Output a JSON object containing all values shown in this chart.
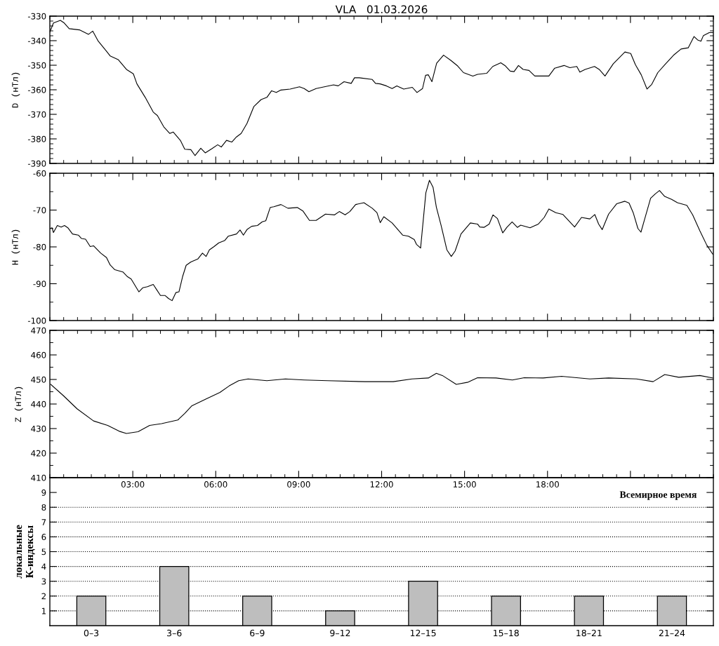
{
  "chart_data": [
    {
      "type": "line",
      "title": "VLA   01.03.2026",
      "ylabel": "D (нТл)",
      "color": "#000000",
      "xlim": [
        0,
        24
      ],
      "ylim": [
        -390,
        -330
      ],
      "xticks": [
        3,
        6,
        9,
        12,
        15,
        18,
        21
      ],
      "yticks": [
        -390,
        -380,
        -370,
        -360,
        -350,
        -340,
        -330
      ],
      "tick_labels": "y",
      "x": [
        0.0,
        0.13,
        0.38,
        0.52,
        0.7,
        1.07,
        1.4,
        1.55,
        1.75,
        2.05,
        2.18,
        2.47,
        2.77,
        3.02,
        3.15,
        3.45,
        3.74,
        3.89,
        4.12,
        4.34,
        4.46,
        4.72,
        4.88,
        5.1,
        5.25,
        5.46,
        5.62,
        5.86,
        6.07,
        6.2,
        6.39,
        6.58,
        6.75,
        6.92,
        7.13,
        7.38,
        7.64,
        7.85,
        8.02,
        8.19,
        8.36,
        8.69,
        9.03,
        9.2,
        9.37,
        9.63,
        10.05,
        10.26,
        10.43,
        10.64,
        10.9,
        11.02,
        11.19,
        11.66,
        11.78,
        11.95,
        12.17,
        12.38,
        12.55,
        12.8,
        13.11,
        13.28,
        13.48,
        13.59,
        13.69,
        13.82,
        13.99,
        14.24,
        14.5,
        14.75,
        14.96,
        15.3,
        15.47,
        15.8,
        16.02,
        16.31,
        16.48,
        16.65,
        16.79,
        16.95,
        17.12,
        17.33,
        17.54,
        18.05,
        18.26,
        18.6,
        18.81,
        19.06,
        19.17,
        19.36,
        19.7,
        19.87,
        20.08,
        20.38,
        20.8,
        21.01,
        21.18,
        21.39,
        21.6,
        21.77,
        21.99,
        22.24,
        22.58,
        22.83,
        23.09,
        23.3,
        23.43,
        23.55,
        23.64,
        23.85,
        23.98
      ],
      "values": [
        -336.5,
        -332.8,
        -331.7,
        -332.8,
        -335.1,
        -335.6,
        -337.4,
        -336.1,
        -340.2,
        -344.3,
        -346.2,
        -347.7,
        -351.7,
        -353.5,
        -357.6,
        -363.1,
        -369.1,
        -370.5,
        -375.1,
        -377.8,
        -377.2,
        -380.6,
        -384.2,
        -384.4,
        -386.8,
        -383.8,
        -385.7,
        -384.0,
        -382.4,
        -383.3,
        -380.6,
        -381.3,
        -379.2,
        -377.8,
        -373.7,
        -366.8,
        -364.0,
        -363.1,
        -360.4,
        -361.1,
        -360.1,
        -359.7,
        -358.8,
        -359.5,
        -360.8,
        -359.5,
        -358.5,
        -358.0,
        -358.4,
        -356.7,
        -357.4,
        -355.1,
        -355.1,
        -355.8,
        -357.4,
        -357.6,
        -358.4,
        -359.5,
        -358.4,
        -359.7,
        -359.0,
        -361.1,
        -359.5,
        -354.1,
        -353.9,
        -356.7,
        -349.2,
        -345.9,
        -348.0,
        -350.3,
        -353.0,
        -354.4,
        -353.7,
        -353.3,
        -350.5,
        -349.0,
        -350.3,
        -352.4,
        -352.6,
        -350.1,
        -351.7,
        -352.1,
        -354.4,
        -354.4,
        -351.2,
        -350.1,
        -351.0,
        -350.5,
        -352.8,
        -351.7,
        -350.5,
        -351.7,
        -354.4,
        -349.4,
        -344.6,
        -345.2,
        -349.8,
        -353.9,
        -359.7,
        -357.8,
        -353.0,
        -349.8,
        -345.7,
        -343.4,
        -342.9,
        -338.3,
        -339.7,
        -340.2,
        -337.9,
        -336.7,
        -336.7
      ]
    },
    {
      "type": "line",
      "ylabel": "H (нТл)",
      "color": "#000000",
      "xlim": [
        0,
        24
      ],
      "ylim": [
        -100,
        -60
      ],
      "xticks": [
        3,
        6,
        9,
        12,
        15,
        18,
        21
      ],
      "yticks": [
        -100,
        -90,
        -80,
        -70,
        -60
      ],
      "tick_labels": "y",
      "x": [
        0.0,
        0.08,
        0.13,
        0.27,
        0.41,
        0.53,
        0.65,
        0.82,
        1.03,
        1.14,
        1.29,
        1.46,
        1.58,
        1.84,
        2.05,
        2.18,
        2.35,
        2.64,
        2.81,
        2.94,
        3.22,
        3.36,
        3.53,
        3.74,
        3.87,
        4.0,
        4.17,
        4.29,
        4.42,
        4.56,
        4.67,
        4.8,
        4.93,
        5.1,
        5.35,
        5.52,
        5.65,
        5.77,
        5.94,
        6.11,
        6.32,
        6.45,
        6.75,
        6.88,
        7.0,
        7.13,
        7.3,
        7.51,
        7.68,
        7.81,
        7.97,
        8.1,
        8.36,
        8.61,
        8.95,
        9.16,
        9.39,
        9.63,
        9.97,
        10.3,
        10.47,
        10.68,
        10.85,
        11.06,
        11.36,
        11.66,
        11.83,
        11.95,
        12.08,
        12.38,
        12.76,
        12.97,
        13.18,
        13.26,
        13.41,
        13.6,
        13.73,
        13.86,
        13.98,
        14.15,
        14.36,
        14.52,
        14.66,
        14.87,
        15.21,
        15.47,
        15.55,
        15.7,
        15.89,
        16.03,
        16.19,
        16.38,
        16.53,
        16.72,
        16.91,
        17.03,
        17.37,
        17.67,
        17.88,
        18.05,
        18.3,
        18.56,
        18.98,
        19.23,
        19.53,
        19.71,
        19.85,
        19.98,
        20.21,
        20.5,
        20.8,
        20.95,
        21.1,
        21.27,
        21.38,
        21.52,
        21.73,
        21.9,
        22.05,
        22.24,
        22.49,
        22.7,
        23.04,
        23.25,
        23.51,
        23.76,
        23.98
      ],
      "values": [
        -75.0,
        -74.8,
        -76.1,
        -74.2,
        -74.6,
        -74.2,
        -74.8,
        -76.5,
        -76.8,
        -77.7,
        -77.9,
        -79.9,
        -79.7,
        -81.7,
        -82.9,
        -84.9,
        -86.2,
        -86.8,
        -88.1,
        -88.7,
        -92.2,
        -91.1,
        -90.8,
        -90.2,
        -91.7,
        -93.2,
        -93.2,
        -94.0,
        -94.6,
        -92.4,
        -92.2,
        -88.1,
        -85.0,
        -84.1,
        -83.3,
        -81.7,
        -82.6,
        -80.8,
        -79.9,
        -78.9,
        -78.3,
        -77.1,
        -76.5,
        -75.4,
        -76.8,
        -75.3,
        -74.4,
        -74.2,
        -73.2,
        -72.9,
        -69.3,
        -69.1,
        -68.5,
        -69.5,
        -69.3,
        -70.3,
        -72.8,
        -72.8,
        -71.1,
        -71.3,
        -70.4,
        -71.3,
        -70.4,
        -68.5,
        -68.0,
        -69.5,
        -70.7,
        -73.4,
        -71.8,
        -73.5,
        -76.8,
        -77.1,
        -78.0,
        -79.3,
        -80.3,
        -65.3,
        -61.9,
        -63.8,
        -69.2,
        -74.1,
        -80.8,
        -82.6,
        -81.1,
        -76.5,
        -73.5,
        -73.8,
        -74.6,
        -74.7,
        -73.8,
        -71.3,
        -72.3,
        -76.2,
        -74.7,
        -73.2,
        -74.7,
        -74.1,
        -74.8,
        -73.8,
        -72.0,
        -69.7,
        -70.7,
        -71.2,
        -74.6,
        -72.0,
        -72.4,
        -71.2,
        -73.8,
        -75.3,
        -71.1,
        -68.3,
        -67.6,
        -68.1,
        -70.7,
        -75.0,
        -76.0,
        -72.3,
        -66.8,
        -65.6,
        -64.7,
        -66.3,
        -67.1,
        -68.0,
        -68.7,
        -71.3,
        -75.6,
        -79.5,
        -82.0
      ]
    },
    {
      "type": "line",
      "ylabel": "Z (нТл)",
      "xlabel": "Всемирное время",
      "color": "#000000",
      "xlim": [
        0,
        24
      ],
      "ylim": [
        410,
        470
      ],
      "xticks": [
        {
          "value": 3,
          "label": "03:00"
        },
        {
          "value": 6,
          "label": "06:00"
        },
        {
          "value": 9,
          "label": "09:00"
        },
        {
          "value": 12,
          "label": "12:00"
        },
        {
          "value": 15,
          "label": "15:00"
        },
        {
          "value": 18,
          "label": "18:00"
        },
        {
          "value": 21,
          "label": null
        }
      ],
      "yticks": [
        410,
        420,
        430,
        440,
        450,
        460,
        470
      ],
      "x": [
        0.03,
        0.48,
        0.99,
        1.58,
        2.09,
        2.51,
        2.77,
        3.19,
        3.61,
        4.04,
        4.63,
        4.88,
        5.14,
        5.64,
        6.15,
        6.49,
        6.83,
        7.17,
        7.85,
        8.52,
        9.2,
        10.05,
        11.4,
        12.42,
        13.1,
        13.69,
        13.98,
        14.2,
        14.7,
        15.13,
        15.47,
        16.14,
        16.73,
        17.16,
        17.84,
        18.51,
        19.53,
        20.21,
        21.22,
        21.82,
        22.24,
        22.75,
        23.51,
        23.98
      ],
      "values": [
        448.0,
        443.5,
        438.0,
        433.1,
        431.3,
        428.9,
        428.0,
        428.7,
        431.3,
        432.0,
        433.5,
        436.2,
        439.3,
        442.0,
        444.7,
        447.4,
        449.5,
        450.2,
        449.5,
        450.2,
        449.8,
        449.5,
        449.1,
        449.1,
        450.2,
        450.6,
        452.5,
        451.6,
        448.0,
        448.9,
        450.7,
        450.6,
        449.8,
        450.7,
        450.6,
        451.3,
        450.2,
        450.6,
        450.2,
        449.1,
        452.0,
        450.9,
        451.6,
        450.6
      ]
    },
    {
      "type": "bar",
      "ylabel": "локальные\nК-индексы",
      "categories": [
        "0–3",
        "3–6",
        "6–9",
        "9–12",
        "12–15",
        "15–18",
        "18–21",
        "21–24"
      ],
      "values": [
        2,
        4,
        2,
        1,
        3,
        2,
        2,
        2
      ],
      "color": "#bebebe",
      "ylim": [
        0,
        10
      ],
      "yticks": [
        1,
        2,
        3,
        4,
        5,
        6,
        7,
        8,
        9
      ],
      "ref_lines": [
        {
          "axis": "y",
          "value": 1,
          "line_style": "dotted",
          "color": "#000000"
        },
        {
          "axis": "y",
          "value": 2,
          "line_style": "dotted",
          "color": "#000000"
        },
        {
          "axis": "y",
          "value": 3,
          "line_style": "dotted",
          "color": "#000000"
        },
        {
          "axis": "y",
          "value": 4,
          "line_style": "dotted",
          "color": "#000000"
        },
        {
          "axis": "y",
          "value": 5,
          "line_style": "dotted",
          "color": "#000000"
        },
        {
          "axis": "y",
          "value": 6,
          "line_style": "dotted",
          "color": "#000000"
        },
        {
          "axis": "y",
          "value": 7,
          "line_style": "dotted",
          "color": "#000000"
        },
        {
          "axis": "y",
          "value": 8,
          "line_style": "dotted",
          "color": "#000000"
        }
      ]
    }
  ]
}
